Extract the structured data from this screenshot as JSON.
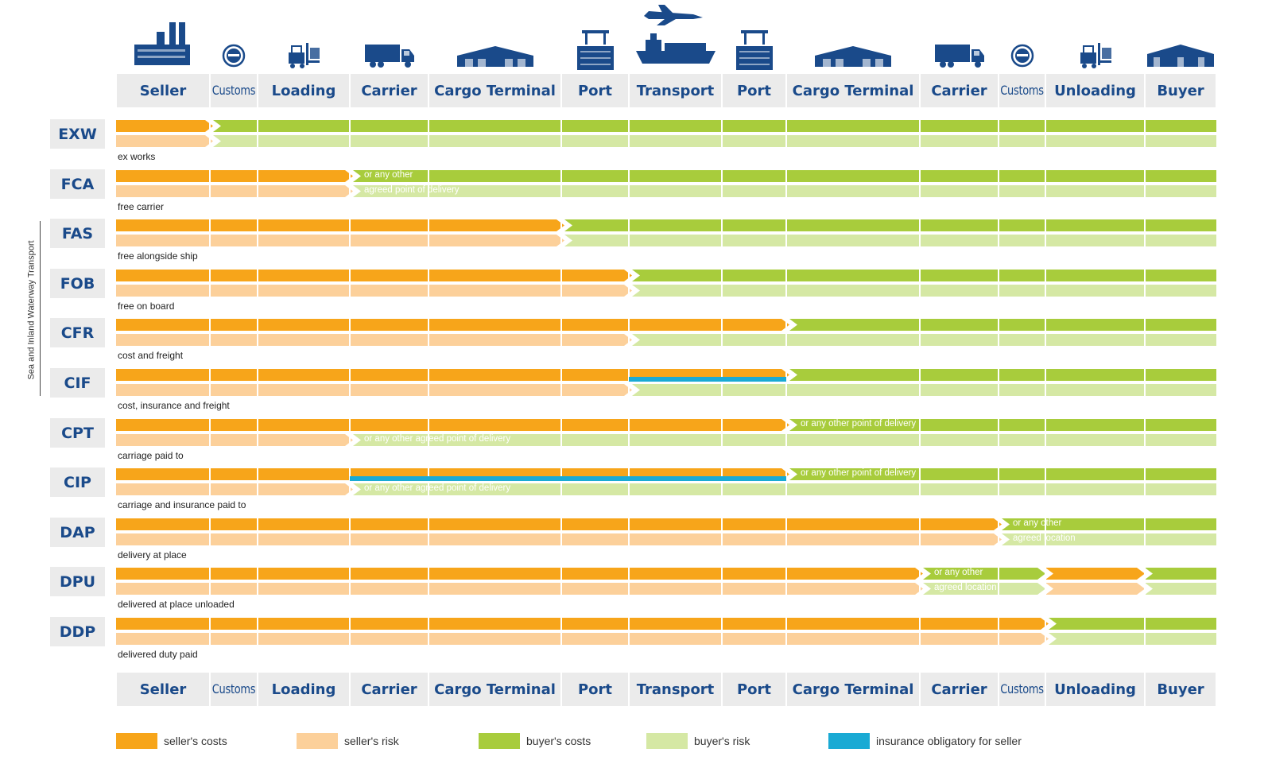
{
  "columns": [
    "Seller",
    "Customs",
    "Loading",
    "Carrier",
    "Cargo Terminal",
    "Port",
    "Transport",
    "Port",
    "Cargo Terminal",
    "Carrier",
    "Customs",
    "Unloading",
    "Buyer"
  ],
  "side_label": "Sea and Inland Waterway Transport",
  "colors": {
    "seller_costs": "#f7a51a",
    "seller_risk": "#fcd09a",
    "buyer_costs": "#a8cc3c",
    "buyer_risk": "#d5e8a4",
    "insurance": "#1aaad4"
  },
  "terms": [
    {
      "code": "EXW",
      "description": "ex works",
      "cost_transfer": 1,
      "risk_transfer": 1
    },
    {
      "code": "FCA",
      "description": "free carrier",
      "cost_transfer": 3,
      "risk_transfer": 3,
      "note_cost": "or any other",
      "note_risk": "agreed point of delivery"
    },
    {
      "code": "FAS",
      "description": "free alongside ship",
      "cost_transfer": 5,
      "risk_transfer": 5
    },
    {
      "code": "FOB",
      "description": "free on board",
      "cost_transfer": 6,
      "risk_transfer": 6
    },
    {
      "code": "CFR",
      "description": "cost and freight",
      "cost_transfer": 8,
      "risk_transfer": 6
    },
    {
      "code": "CIF",
      "description": "cost, insurance and freight",
      "cost_transfer": 8,
      "risk_transfer": 6,
      "insurance": [
        6,
        8
      ]
    },
    {
      "code": "CPT",
      "description": "carriage paid to",
      "cost_transfer": 8,
      "risk_transfer": 3,
      "note_cost": "or any other point of delivery",
      "note_risk": "or any other agreed point of delivery"
    },
    {
      "code": "CIP",
      "description": "carriage and insurance paid to",
      "cost_transfer": 8,
      "risk_transfer": 3,
      "insurance": [
        3,
        8
      ],
      "note_cost": "or any other point of delivery",
      "note_risk": "or any other agreed point of delivery"
    },
    {
      "code": "DAP",
      "description": "delivery at place",
      "cost_transfer": 10,
      "risk_transfer": 10,
      "note_cost": "or any other",
      "note_risk": "agreed location"
    },
    {
      "code": "DPU",
      "description": "delivered at place unloaded",
      "cost_transfer": 9,
      "risk_transfer": 9,
      "unloading_seller": true,
      "note_cost": "or any other",
      "note_risk": "agreed location"
    },
    {
      "code": "DDP",
      "description": "delivered duty paid",
      "cost_transfer": 11,
      "risk_transfer": 11
    }
  ],
  "legend": [
    {
      "key": "seller_costs",
      "label": "seller's costs"
    },
    {
      "key": "seller_risk",
      "label": "seller's risk"
    },
    {
      "key": "buyer_costs",
      "label": "buyer's costs"
    },
    {
      "key": "buyer_risk",
      "label": "buyer's risk"
    },
    {
      "key": "insurance",
      "label": "insurance obligatory for seller"
    }
  ],
  "icons": [
    "factory-icon",
    "customs-stamp-icon",
    "forklift-icon",
    "truck-icon",
    "warehouse-icon",
    "port-crane-icon",
    "ship-and-plane-icon",
    "port-crane-icon",
    "warehouse-icon",
    "truck-icon",
    "customs-stamp-icon",
    "forklift-icon",
    "buyer-warehouse-icon"
  ]
}
